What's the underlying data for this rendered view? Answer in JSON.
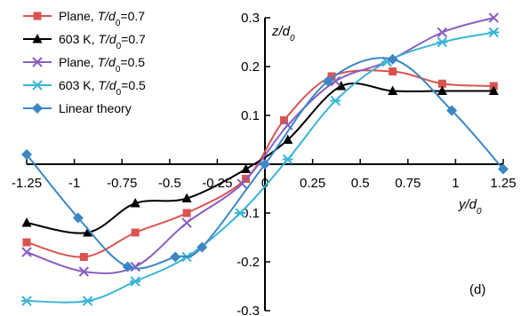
{
  "chart_data": {
    "type": "line",
    "xlabel": "y/d0",
    "ylabel": "z/d0",
    "panel_label": "(d)",
    "xlim": [
      -1.25,
      1.25
    ],
    "ylim": [
      -0.3,
      0.3
    ],
    "xticks": [
      "-1.25",
      "-1",
      "-0.75",
      "-0.5",
      "-0.25",
      "0",
      "0.25",
      "0.5",
      "0.75",
      "1",
      "1.25"
    ],
    "yticks": [
      "-0.3",
      "-0.2",
      "-0.1",
      "0",
      "0.1",
      "0.2",
      "0.3"
    ],
    "legend_position": "top-left",
    "grid": false,
    "series": [
      {
        "name": "Plane, T/d0=0.7",
        "color": "#d9534f",
        "marker": "square",
        "x": [
          -1.25,
          -0.95,
          -0.68,
          -0.41,
          -0.1,
          0.1,
          0.35,
          0.67,
          0.93,
          1.2
        ],
        "y": [
          -0.16,
          -0.19,
          -0.14,
          -0.1,
          -0.03,
          0.09,
          0.18,
          0.19,
          0.165,
          0.16
        ]
      },
      {
        "name": "603 K, T/d0=0.7",
        "color": "#000000",
        "marker": "triangle",
        "x": [
          -1.25,
          -0.93,
          -0.68,
          -0.41,
          -0.1,
          0.12,
          0.4,
          0.67,
          0.93,
          1.2
        ],
        "y": [
          -0.12,
          -0.14,
          -0.08,
          -0.07,
          -0.01,
          0.05,
          0.16,
          0.15,
          0.15,
          0.15
        ]
      },
      {
        "name": "Plane, T/d0=0.5",
        "color": "#8a5fc0",
        "marker": "x",
        "x": [
          -1.25,
          -0.95,
          -0.68,
          -0.41,
          -0.12,
          0.12,
          0.37,
          0.64,
          0.93,
          1.2
        ],
        "y": [
          -0.18,
          -0.22,
          -0.21,
          -0.12,
          -0.04,
          0.08,
          0.17,
          0.21,
          0.27,
          0.3
        ]
      },
      {
        "name": "603 K, T/d0=0.5",
        "color": "#3ab5d6",
        "marker": "star",
        "x": [
          -1.25,
          -0.93,
          -0.68,
          -0.41,
          -0.13,
          0.12,
          0.37,
          0.64,
          0.93,
          1.2
        ],
        "y": [
          -0.28,
          -0.28,
          -0.24,
          -0.19,
          -0.1,
          0.01,
          0.13,
          0.21,
          0.25,
          0.27
        ]
      },
      {
        "name": "Linear theory",
        "color": "#3c86c4",
        "marker": "diamond",
        "x": [
          -1.25,
          -0.98,
          -0.72,
          -0.47,
          -0.33,
          0,
          0.33,
          0.67,
          0.98,
          1.25
        ],
        "y": [
          0.02,
          -0.11,
          -0.21,
          -0.19,
          -0.17,
          0,
          0.17,
          0.215,
          0.11,
          -0.01
        ]
      }
    ]
  }
}
